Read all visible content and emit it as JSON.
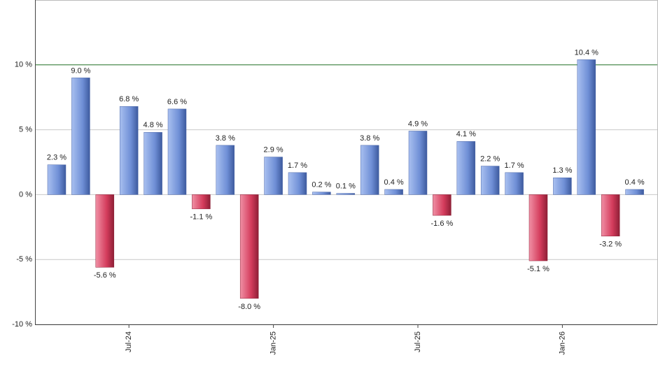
{
  "chart_data": {
    "type": "bar",
    "categories": [
      null,
      null,
      null,
      "Jul-24",
      null,
      null,
      null,
      null,
      null,
      "Jan-25",
      null,
      null,
      null,
      null,
      null,
      "Jul-25",
      null,
      null,
      null,
      null,
      null,
      "Jan-26",
      null,
      null,
      null
    ],
    "values": [
      2.3,
      9.0,
      -5.6,
      6.8,
      4.8,
      6.6,
      -1.1,
      3.8,
      -8.0,
      2.9,
      1.7,
      0.2,
      0.1,
      3.8,
      0.4,
      4.9,
      -1.6,
      4.1,
      2.2,
      1.7,
      -5.1,
      1.3,
      10.4,
      -3.2,
      0.4
    ],
    "value_labels": [
      "2.3 %",
      "9.0 %",
      "-5.6 %",
      "6.8 %",
      "4.8 %",
      "6.6 %",
      "-1.1 %",
      "3.8 %",
      "-8.0 %",
      "2.9 %",
      "1.7 %",
      "0.2 %",
      "0.1 %",
      "3.8 %",
      "0.4 %",
      "4.9 %",
      "-1.6 %",
      "4.1 %",
      "2.2 %",
      "1.7 %",
      "-5.1 %",
      "1.3 %",
      "10.4 %",
      "-3.2 %",
      "0.4 %"
    ],
    "positive_color": "#6f8fd6",
    "negative_color": "#d43c5c",
    "ylim": [
      -10,
      15
    ],
    "yticks": [
      {
        "value": -10,
        "label": "-10 %"
      },
      {
        "value": -5,
        "label": "-5 %"
      },
      {
        "value": 0,
        "label": "0 %"
      },
      {
        "value": 5,
        "label": "5 %"
      },
      {
        "value": 10,
        "label": "10 %"
      }
    ],
    "grid": true,
    "reference_line": 10,
    "reference_color": "#2e7d32"
  }
}
